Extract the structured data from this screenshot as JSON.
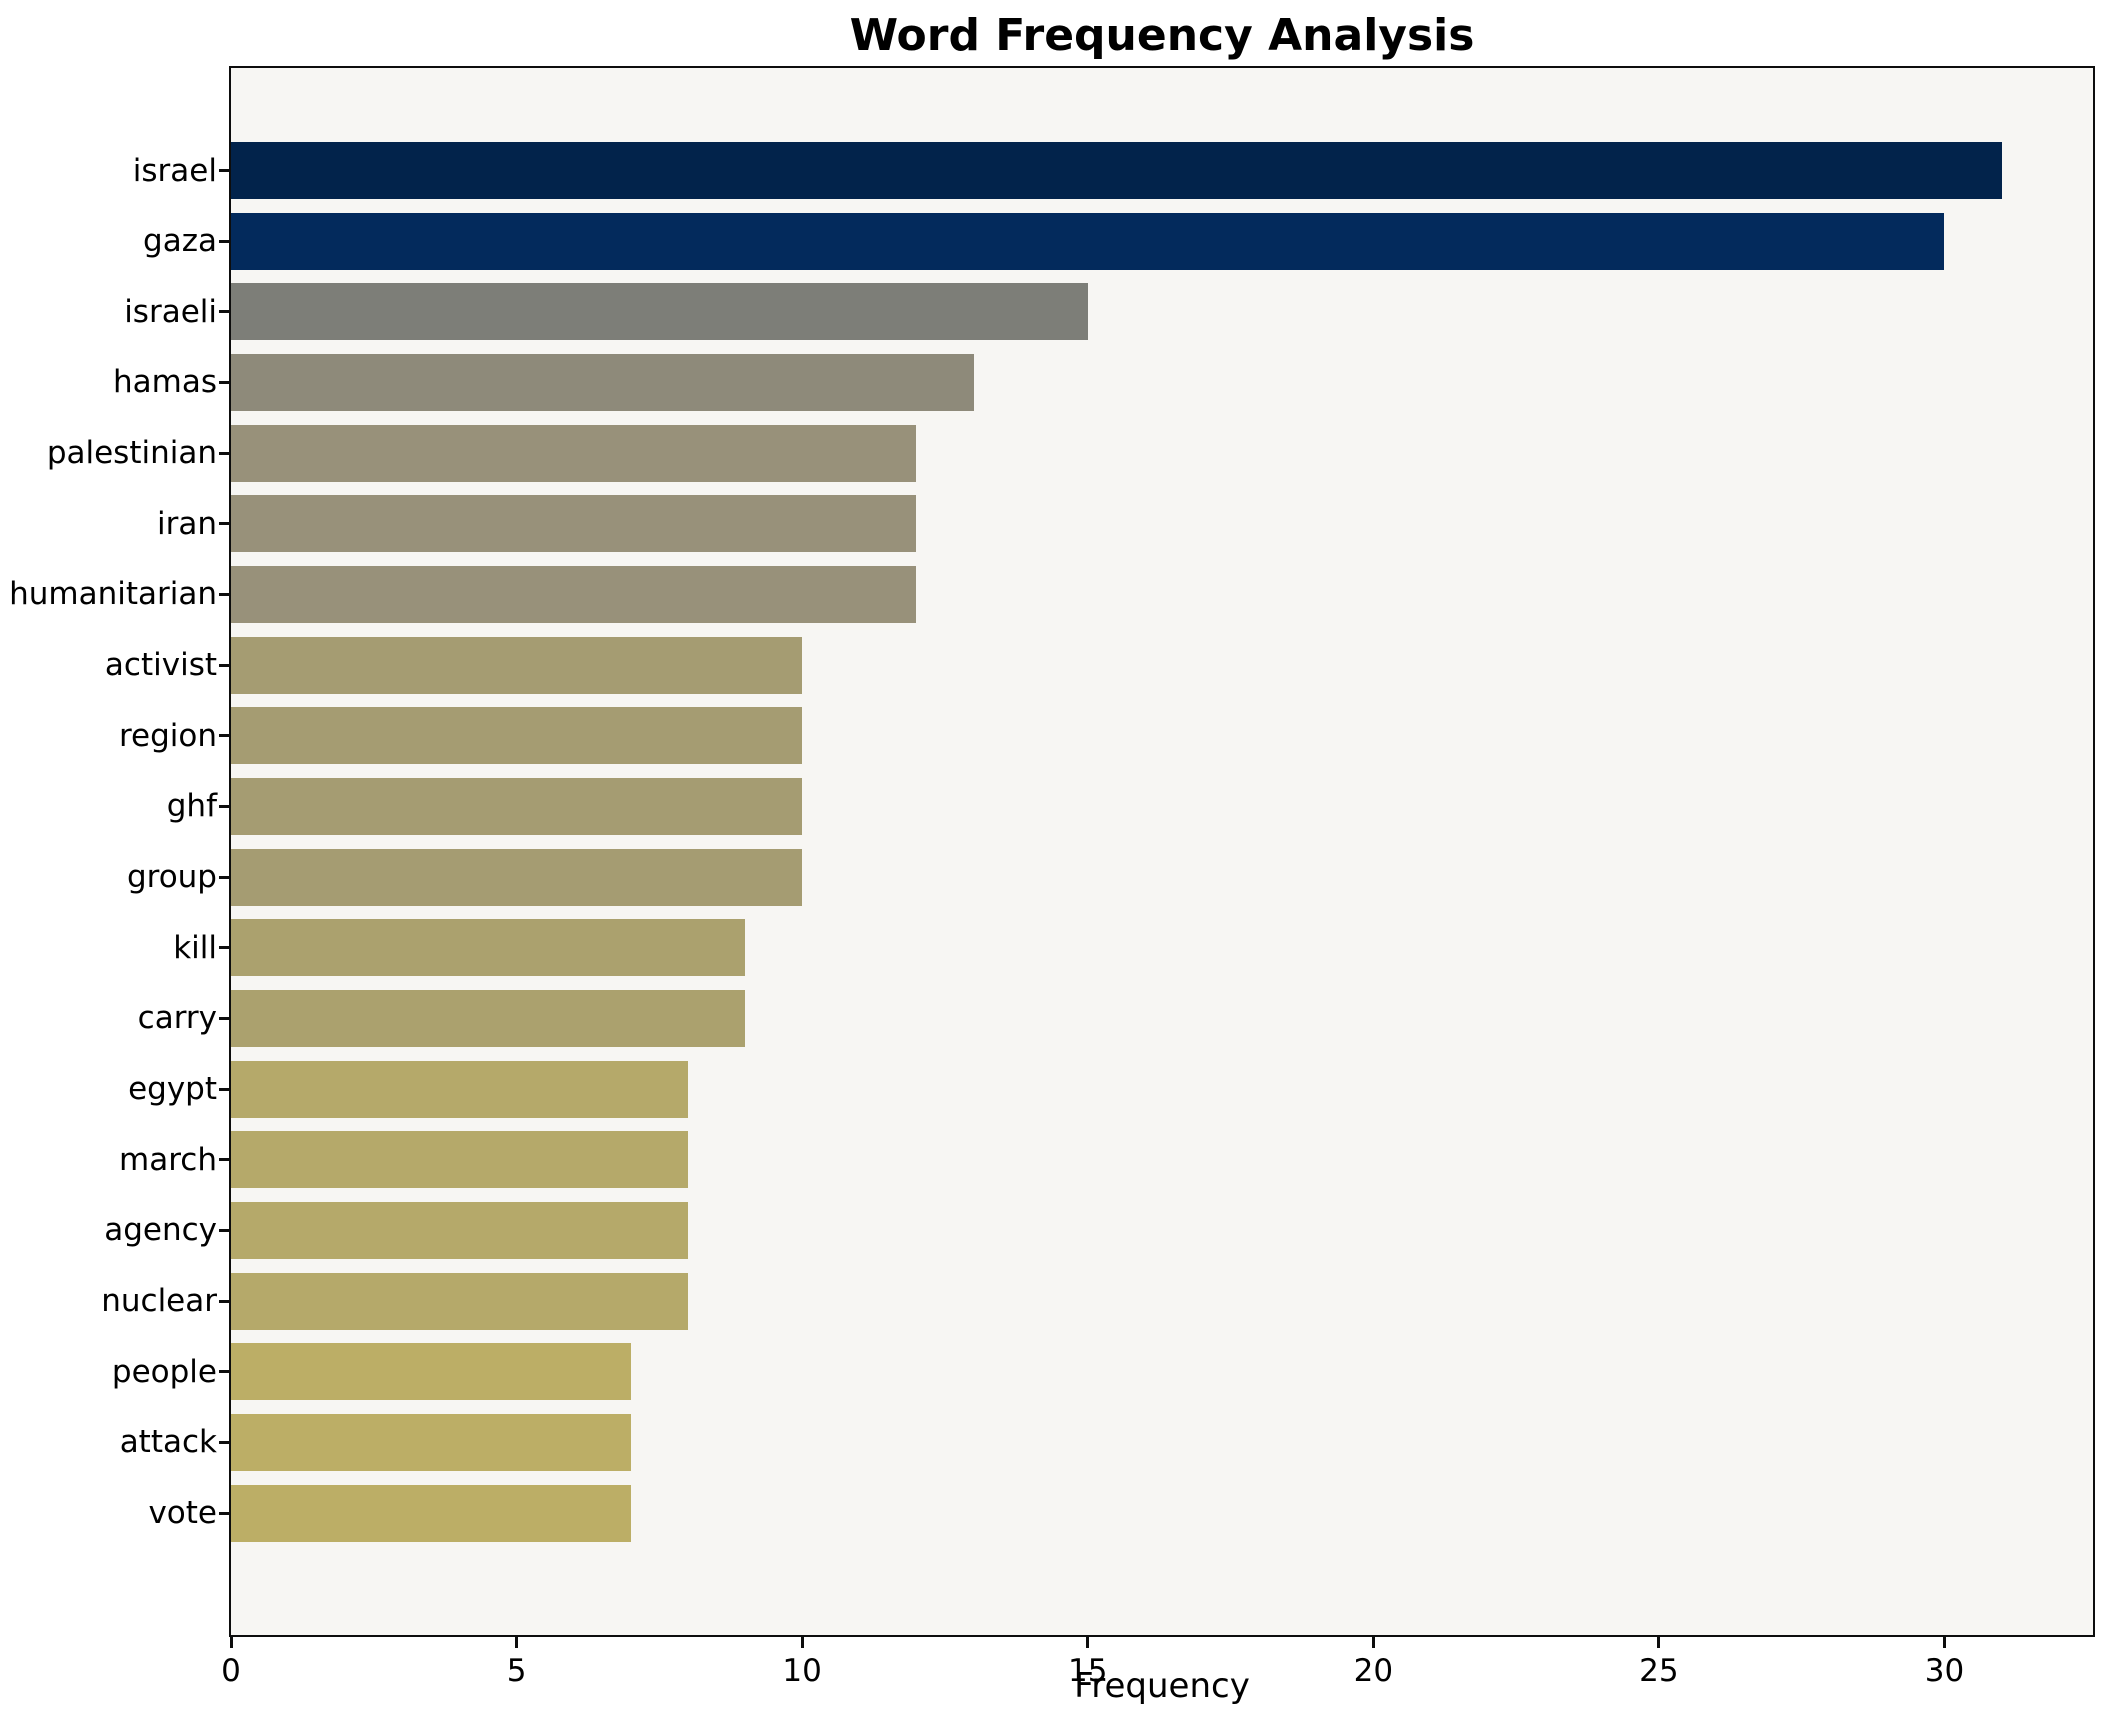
{
  "page": {
    "title": "Word Frequency Analysis"
  },
  "chart_data": {
    "type": "bar",
    "orientation": "horizontal",
    "title": "Word Frequency Analysis",
    "xlabel": "Frequency",
    "ylabel": "",
    "categories": [
      "israel",
      "gaza",
      "israeli",
      "hamas",
      "palestinian",
      "iran",
      "humanitarian",
      "activist",
      "region",
      "ghf",
      "group",
      "kill",
      "carry",
      "egypt",
      "march",
      "agency",
      "nuclear",
      "people",
      "attack",
      "vote"
    ],
    "values": [
      31,
      30,
      15,
      13,
      12,
      12,
      12,
      10,
      10,
      10,
      10,
      9,
      9,
      8,
      8,
      8,
      8,
      7,
      7,
      7
    ],
    "bar_colors": [
      "#02234b",
      "#032a5c",
      "#7d7e78",
      "#8e8a7a",
      "#98917a",
      "#98917a",
      "#98917a",
      "#a59c72",
      "#a59c72",
      "#a59c72",
      "#a59c72",
      "#aba16e",
      "#aba16e",
      "#b5a96a",
      "#b5a96a",
      "#b5a96a",
      "#b5a96a",
      "#bcae66",
      "#bcae66",
      "#bcae66"
    ],
    "xticks": [
      0,
      5,
      10,
      15,
      20,
      25,
      30
    ],
    "xlim": [
      0,
      32.6
    ],
    "grid": false,
    "legend_position": "none",
    "plot_background": "#f7f6f3",
    "figure_background": "#ffffff",
    "spine_color": "#0d0d0d"
  }
}
